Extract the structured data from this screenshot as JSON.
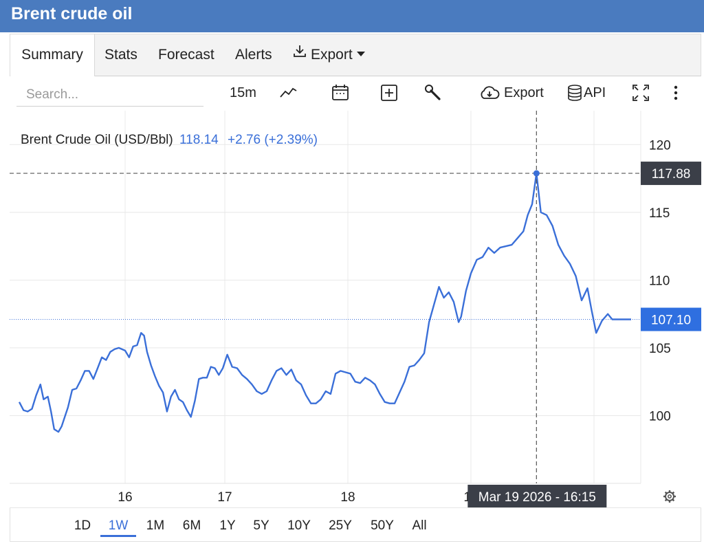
{
  "page_title": "Brent crude oil",
  "tabs": [
    {
      "label": "Summary",
      "active": true
    },
    {
      "label": "Stats"
    },
    {
      "label": "Forecast"
    },
    {
      "label": "Alerts"
    },
    {
      "label": "Export",
      "icon": "download-icon",
      "dropdown": true
    }
  ],
  "toolbar": {
    "search_placeholder": "Search...",
    "interval": "15m",
    "export_label": "Export",
    "api_label": "API",
    "icons": [
      "line-chart-icon",
      "calendar-icon",
      "add-indicator-icon",
      "wrench-icon",
      "cloud-download-icon",
      "database-icon",
      "fullscreen-icon",
      "more-vert-icon"
    ]
  },
  "legend": {
    "name": "Brent Crude Oil (USD/Bbl)",
    "value": "118.14",
    "change": "+2.76 (+2.39%)"
  },
  "ranges": [
    "1D",
    "1W",
    "1M",
    "6M",
    "1Y",
    "5Y",
    "10Y",
    "25Y",
    "50Y",
    "All"
  ],
  "active_range": "1W",
  "colors": {
    "header": "#4a7bbf",
    "line": "#3a6fd8",
    "last_price_label": "#2f6fe0",
    "crosshair_label": "#3b3f48"
  },
  "chart_data": {
    "type": "line",
    "title": "",
    "xlabel": "",
    "ylabel": "",
    "x_ticks": [
      "16",
      "17",
      "18",
      "19"
    ],
    "y_ticks": [
      100,
      105,
      110,
      115,
      120
    ],
    "ylim": [
      95,
      122.5
    ],
    "grid": true,
    "series": [
      {
        "name": "Brent Crude Oil (USD/Bbl)",
        "points": [
          [
            15.0,
            101.0
          ],
          [
            15.04,
            100.4
          ],
          [
            15.08,
            100.3
          ],
          [
            15.12,
            100.5
          ],
          [
            15.16,
            101.5
          ],
          [
            15.2,
            102.3
          ],
          [
            15.23,
            101.2
          ],
          [
            15.27,
            101.4
          ],
          [
            15.3,
            100.3
          ],
          [
            15.33,
            99.0
          ],
          [
            15.37,
            98.8
          ],
          [
            15.4,
            99.2
          ],
          [
            15.43,
            99.9
          ],
          [
            15.46,
            100.6
          ],
          [
            15.5,
            101.9
          ],
          [
            15.54,
            102.0
          ],
          [
            15.58,
            102.6
          ],
          [
            15.62,
            103.3
          ],
          [
            15.66,
            103.3
          ],
          [
            15.7,
            102.7
          ],
          [
            15.74,
            103.5
          ],
          [
            15.78,
            104.3
          ],
          [
            15.82,
            104.1
          ],
          [
            15.86,
            104.7
          ],
          [
            15.9,
            104.9
          ],
          [
            15.94,
            105.0
          ],
          [
            16.0,
            104.8
          ],
          [
            16.04,
            104.3
          ],
          [
            16.08,
            105.1
          ],
          [
            16.12,
            105.2
          ],
          [
            16.16,
            106.1
          ],
          [
            16.19,
            105.9
          ],
          [
            16.22,
            104.7
          ],
          [
            16.26,
            103.7
          ],
          [
            16.3,
            102.9
          ],
          [
            16.34,
            102.2
          ],
          [
            16.38,
            101.7
          ],
          [
            16.42,
            100.3
          ],
          [
            16.46,
            101.4
          ],
          [
            16.5,
            101.9
          ],
          [
            16.54,
            101.2
          ],
          [
            16.58,
            101.0
          ],
          [
            16.62,
            100.4
          ],
          [
            16.66,
            99.9
          ],
          [
            16.7,
            101.1
          ],
          [
            16.74,
            102.7
          ],
          [
            16.78,
            102.8
          ],
          [
            16.82,
            102.8
          ],
          [
            16.86,
            103.6
          ],
          [
            16.9,
            103.5
          ],
          [
            16.94,
            103.0
          ],
          [
            16.98,
            103.5
          ],
          [
            17.02,
            104.5
          ],
          [
            17.06,
            103.6
          ],
          [
            17.1,
            103.5
          ],
          [
            17.14,
            103.0
          ],
          [
            17.18,
            102.7
          ],
          [
            17.22,
            102.3
          ],
          [
            17.26,
            101.8
          ],
          [
            17.3,
            101.6
          ],
          [
            17.34,
            101.8
          ],
          [
            17.38,
            102.6
          ],
          [
            17.42,
            103.3
          ],
          [
            17.46,
            103.5
          ],
          [
            17.5,
            103.0
          ],
          [
            17.54,
            103.4
          ],
          [
            17.58,
            102.6
          ],
          [
            17.62,
            102.3
          ],
          [
            17.66,
            101.5
          ],
          [
            17.7,
            100.9
          ],
          [
            17.74,
            100.9
          ],
          [
            17.78,
            101.2
          ],
          [
            17.82,
            101.8
          ],
          [
            17.86,
            101.6
          ],
          [
            17.9,
            103.1
          ],
          [
            17.94,
            103.3
          ],
          [
            17.98,
            103.2
          ],
          [
            18.02,
            103.1
          ],
          [
            18.06,
            102.5
          ],
          [
            18.1,
            102.4
          ],
          [
            18.14,
            102.8
          ],
          [
            18.18,
            102.6
          ],
          [
            18.22,
            102.3
          ],
          [
            18.26,
            101.6
          ],
          [
            18.3,
            101.0
          ],
          [
            18.34,
            100.9
          ],
          [
            18.38,
            100.9
          ],
          [
            18.42,
            101.7
          ],
          [
            18.46,
            102.5
          ],
          [
            18.5,
            103.6
          ],
          [
            18.54,
            103.7
          ],
          [
            18.58,
            104.1
          ],
          [
            18.62,
            104.6
          ],
          [
            18.66,
            106.9
          ],
          [
            18.7,
            108.2
          ],
          [
            18.74,
            109.5
          ],
          [
            18.78,
            108.7
          ],
          [
            18.82,
            109.1
          ],
          [
            18.86,
            108.4
          ],
          [
            18.9,
            106.9
          ],
          [
            18.92,
            107.3
          ],
          [
            18.96,
            109.2
          ],
          [
            19.0,
            110.5
          ],
          [
            19.04,
            111.5
          ],
          [
            19.08,
            111.7
          ],
          [
            19.12,
            112.4
          ],
          [
            19.16,
            112.0
          ],
          [
            19.2,
            112.4
          ],
          [
            19.24,
            112.5
          ],
          [
            19.28,
            112.6
          ],
          [
            19.32,
            113.1
          ],
          [
            19.36,
            113.6
          ],
          [
            19.39,
            114.8
          ],
          [
            19.42,
            115.6
          ],
          [
            19.45,
            117.88
          ],
          [
            19.48,
            115.0
          ],
          [
            19.52,
            114.8
          ],
          [
            19.56,
            114.0
          ],
          [
            19.6,
            112.6
          ],
          [
            19.64,
            111.8
          ],
          [
            19.68,
            111.2
          ],
          [
            19.72,
            110.3
          ],
          [
            19.76,
            108.5
          ],
          [
            19.8,
            109.4
          ],
          [
            19.83,
            107.7
          ],
          [
            19.86,
            106.1
          ],
          [
            19.9,
            107.0
          ],
          [
            19.94,
            107.5
          ],
          [
            19.97,
            107.1
          ],
          [
            20.1,
            107.1
          ]
        ]
      }
    ],
    "last_price": "107.10",
    "crosshair": {
      "x_label": "Mar 19 2026 - 16:15",
      "y_label": "117.88",
      "x": 19.45,
      "y": 117.88
    }
  }
}
